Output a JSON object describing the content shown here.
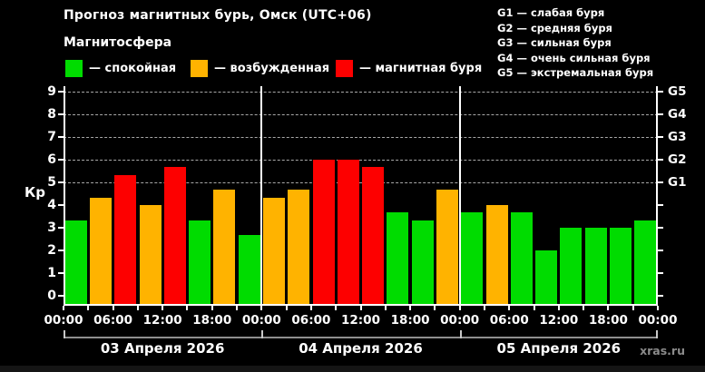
{
  "header": {
    "title": "Прогноз магнитных бурь, Омск (UTC+06)",
    "subtitle": "Магнитосфера"
  },
  "legend": {
    "items": [
      {
        "level": "quiet",
        "label": "— спокойная"
      },
      {
        "level": "excited",
        "label": "— возбужденная"
      },
      {
        "level": "storm",
        "label": "— магнитная буря"
      }
    ]
  },
  "g_legend": {
    "items": [
      "G1 — слабая буря",
      "G2 — средняя буря",
      "G3 — сильная буря",
      "G4 — очень сильная буря",
      "G5 — экстремальная буря"
    ]
  },
  "footer": {
    "watermark": "xras.ru"
  },
  "chart_data": {
    "type": "bar",
    "title": "Прогноз магнитных бурь, Омск (UTC+06)",
    "ylabel": "Кр",
    "ylim": [
      0,
      9
    ],
    "yticks": [
      0,
      1,
      2,
      3,
      4,
      5,
      6,
      7,
      8,
      9
    ],
    "dashed_gridlines_at_kp": [
      5,
      6,
      7,
      8,
      9
    ],
    "bar_interval_hours": 3,
    "x_tick_labels": [
      "00:00",
      "06:00",
      "12:00",
      "18:00",
      "00:00",
      "06:00",
      "12:00",
      "18:00",
      "00:00",
      "06:00",
      "12:00",
      "18:00",
      "00:00"
    ],
    "g_scale": [
      {
        "label": "G5",
        "kp": 9
      },
      {
        "label": "G4",
        "kp": 8
      },
      {
        "label": "G3",
        "kp": 7
      },
      {
        "label": "G2",
        "kp": 6
      },
      {
        "label": "G1",
        "kp": 5
      }
    ],
    "level_colors": {
      "quiet": "#00dc00",
      "excited": "#ffb300",
      "storm": "#fd0000"
    },
    "days": [
      {
        "date": "03 Апреля 2026",
        "values": [
          3.33,
          4.33,
          5.33,
          4.0,
          5.67,
          3.33,
          4.67,
          2.67
        ],
        "levels": [
          "quiet",
          "excited",
          "storm",
          "excited",
          "storm",
          "quiet",
          "excited",
          "quiet"
        ]
      },
      {
        "date": "04 Апреля 2026",
        "values": [
          4.33,
          4.67,
          6.0,
          6.0,
          5.67,
          3.67,
          3.33,
          4.67
        ],
        "levels": [
          "excited",
          "excited",
          "storm",
          "storm",
          "storm",
          "quiet",
          "quiet",
          "excited"
        ]
      },
      {
        "date": "05 Апреля 2026",
        "values": [
          3.67,
          4.0,
          3.67,
          2.0,
          3.0,
          3.0,
          3.0,
          3.33
        ],
        "levels": [
          "quiet",
          "excited",
          "quiet",
          "quiet",
          "quiet",
          "quiet",
          "quiet",
          "quiet"
        ]
      }
    ]
  }
}
